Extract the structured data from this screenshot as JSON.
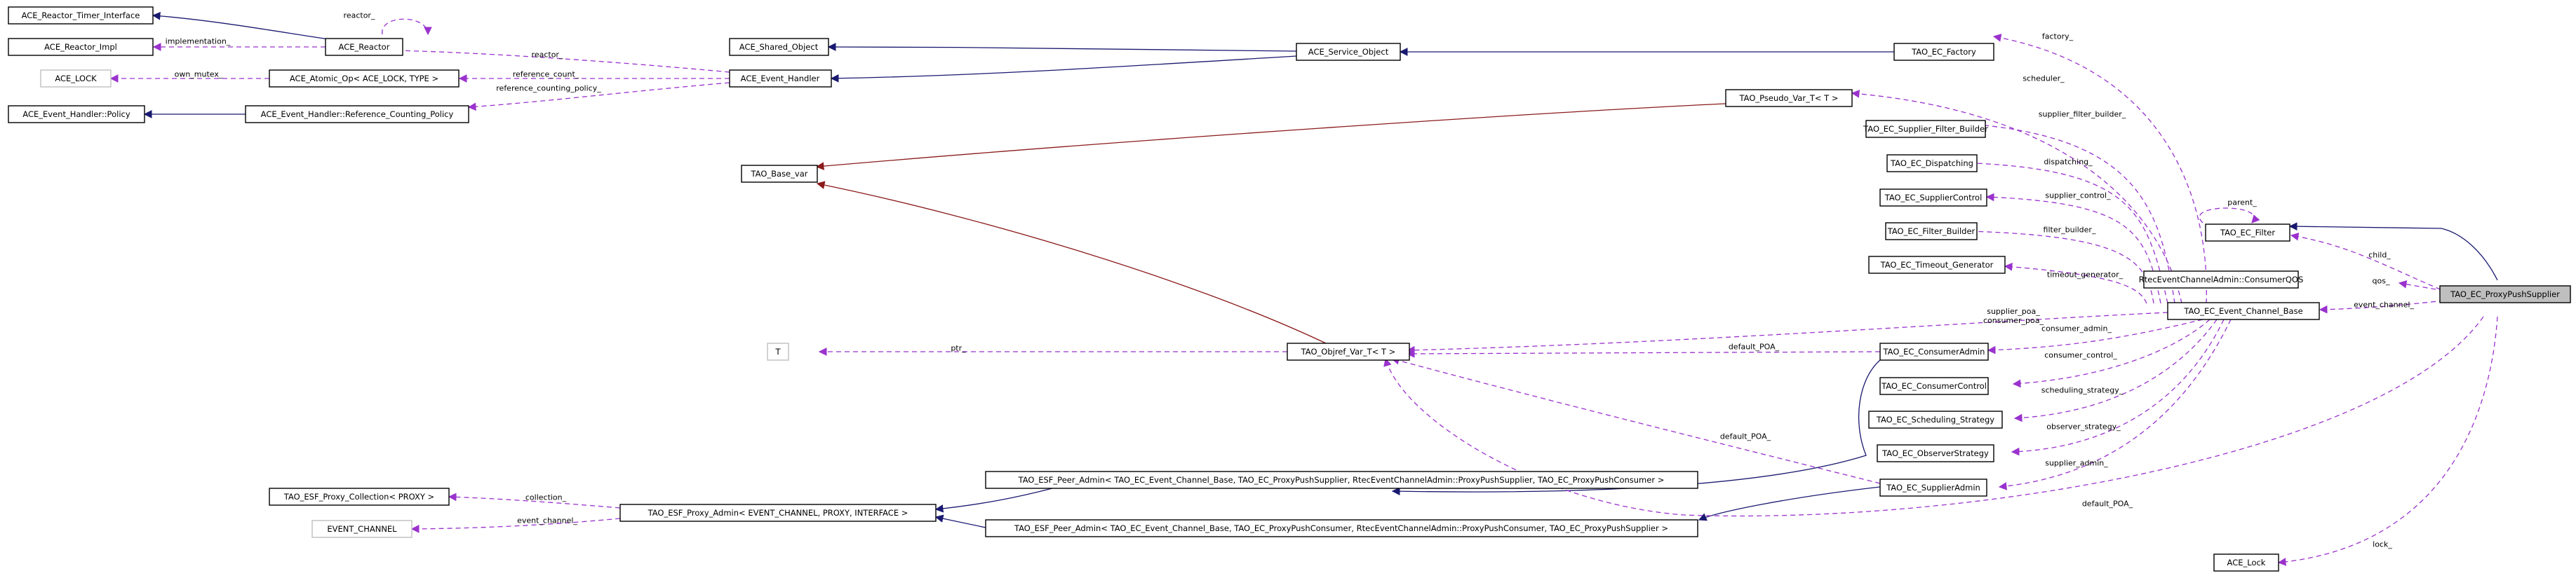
{
  "diagram": {
    "colors": {
      "inheritance": "#191970",
      "template": "#8b1a1a",
      "usage": "#9a32cd",
      "current_fill": "#bfbfbf",
      "undocumented_border": "#bfbfbf"
    },
    "nodes": {
      "reactor_timer_interface": "ACE_Reactor_Timer_Interface",
      "reactor_impl": "ACE_Reactor_Impl",
      "ace_lock": "ACE_LOCK",
      "event_handler_policy": "ACE_Event_Handler::Policy",
      "reactor": "ACE_Reactor",
      "atomic_op": "ACE_Atomic_Op< ACE_LOCK, TYPE >",
      "ref_counting_policy": "ACE_Event_Handler::Reference_Counting_Policy",
      "shared_object": "ACE_Shared_Object",
      "event_handler": "ACE_Event_Handler",
      "service_object": "ACE_Service_Object",
      "ec_factory": "TAO_EC_Factory",
      "pseudo_var": "TAO_Pseudo_Var_T< T >",
      "base_var": "TAO_Base_var",
      "supplier_filter_builder": "TAO_EC_Supplier_Filter_Builder",
      "dispatching": "TAO_EC_Dispatching",
      "supplier_control": "TAO_EC_SupplierControl",
      "filter_builder": "TAO_EC_Filter_Builder",
      "timeout_generator": "TAO_EC_Timeout_Generator",
      "ec_filter": "TAO_EC_Filter",
      "consumer_qos": "RtecEventChannelAdmin::ConsumerQOS",
      "proxy_push_supplier": "TAO_EC_ProxyPushSupplier",
      "event_channel_base": "TAO_EC_Event_Channel_Base",
      "t": "T",
      "objref_var": "TAO_Objref_Var_T< T >",
      "consumer_admin": "TAO_EC_ConsumerAdmin",
      "consumer_control": "TAO_EC_ConsumerControl",
      "scheduling_strategy": "TAO_EC_Scheduling_Strategy",
      "observer_strategy": "TAO_EC_ObserverStrategy",
      "peer_admin_supplier": "TAO_ESF_Peer_Admin< TAO_EC_Event_Channel_Base, TAO_EC_ProxyPushSupplier, RtecEventChannelAdmin::ProxyPushSupplier, TAO_EC_ProxyPushConsumer >",
      "proxy_collection": "TAO_ESF_Proxy_Collection< PROXY >",
      "proxy_admin": "TAO_ESF_Proxy_Admin< EVENT_CHANNEL, PROXY, INTERFACE >",
      "supplier_admin": "TAO_EC_SupplierAdmin",
      "event_channel_type": "EVENT_CHANNEL",
      "peer_admin_consumer": "TAO_ESF_Peer_Admin< TAO_EC_Event_Channel_Base, TAO_EC_ProxyPushConsumer, RtecEventChannelAdmin::ProxyPushConsumer, TAO_EC_ProxyPushSupplier >",
      "ec_lock": "ACE_Lock"
    },
    "edge_labels": {
      "reactor": "reactor_",
      "implementation": "implementation_",
      "reactor_eh": "reactor_",
      "own_mutex": "own_mutex_",
      "reference_count": "reference_count_",
      "reference_counting_policy": "reference_counting_policy_",
      "factory": "factory_",
      "scheduler": "scheduler_",
      "supplier_filter_builder": "supplier_filter_builder_",
      "dispatching": "dispatching_",
      "supplier_control": "supplier_control_",
      "filter_builder": "filter_builder_",
      "timeout_generator": "timeout_generator_",
      "parent": "parent_",
      "child": "child_",
      "qos": "qos_",
      "event_channel": "event_channel_",
      "supplier_poa_consumer_poa": "supplier_poa_\nconsumer_poa_",
      "ptr": "ptr_",
      "consumer_admin": "consumer_admin_",
      "default_poa_1": "default_POA_",
      "consumer_control": "consumer_control_",
      "scheduling_strategy": "scheduling_strategy_",
      "default_poa_2": "default_POA_",
      "observer_strategy": "observer_strategy_",
      "collection": "collection_",
      "event_channel_esf": "event_channel_",
      "supplier_admin": "supplier_admin_",
      "default_poa_3": "default_POA_",
      "lock": "lock_"
    }
  }
}
